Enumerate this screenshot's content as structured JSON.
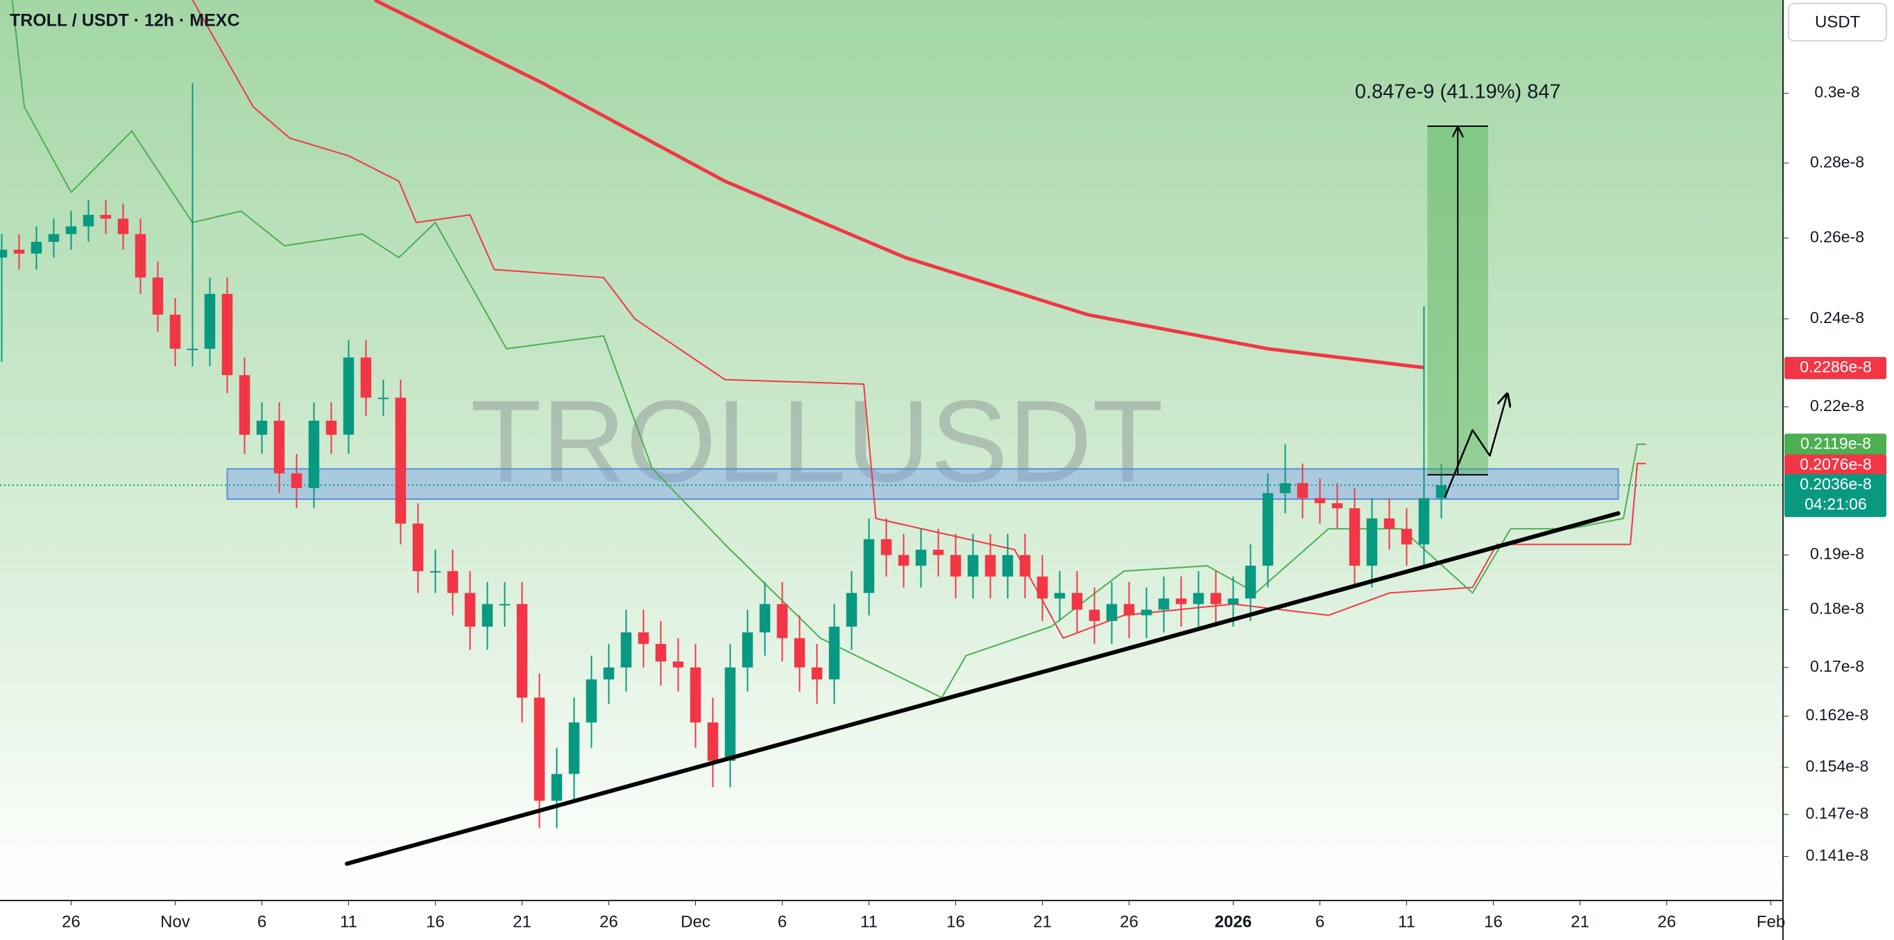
{
  "chart_data": {
    "type": "candlestick",
    "title": "TROLL / USDT · 12h · MEXC",
    "watermark": "TROLLUSDT",
    "currency": "USDT",
    "up_color": "#089981",
    "down_color": "#f23645",
    "log_scale": true,
    "xlim": [
      -4.1,
      98.7
    ],
    "ylim": [
      1.35e-09,
      3.29e-09
    ],
    "xticks": [
      {
        "value": 0,
        "label": "26"
      },
      {
        "value": 6,
        "label": "Nov"
      },
      {
        "value": 11,
        "label": "6"
      },
      {
        "value": 16,
        "label": "11"
      },
      {
        "value": 21,
        "label": "16"
      },
      {
        "value": 26,
        "label": "21"
      },
      {
        "value": 31,
        "label": "26"
      },
      {
        "value": 36,
        "label": "Dec"
      },
      {
        "value": 41,
        "label": "6"
      },
      {
        "value": 46,
        "label": "11"
      },
      {
        "value": 51,
        "label": "16"
      },
      {
        "value": 56,
        "label": "21"
      },
      {
        "value": 61,
        "label": "26"
      },
      {
        "value": 67,
        "label": "2026",
        "bold": true
      },
      {
        "value": 72,
        "label": "6"
      },
      {
        "value": 77,
        "label": "11"
      },
      {
        "value": 82,
        "label": "16"
      },
      {
        "value": 87,
        "label": "21"
      },
      {
        "value": 92,
        "label": "26"
      },
      {
        "value": 98,
        "label": "Feb"
      }
    ],
    "yticks": [
      {
        "value": 3e-09,
        "label": "0.3e-8"
      },
      {
        "value": 2.8e-09,
        "label": "0.28e-8"
      },
      {
        "value": 2.6e-09,
        "label": "0.26e-8"
      },
      {
        "value": 2.4e-09,
        "label": "0.24e-8"
      },
      {
        "value": 2.2e-09,
        "label": "0.22e-8"
      },
      {
        "value": 1.9e-09,
        "label": "0.19e-8"
      },
      {
        "value": 1.8e-09,
        "label": "0.18e-8"
      },
      {
        "value": 1.7e-09,
        "label": "0.17e-8"
      },
      {
        "value": 1.62e-09,
        "label": "0.162e-8"
      },
      {
        "value": 1.54e-09,
        "label": "0.154e-8"
      },
      {
        "value": 1.47e-09,
        "label": "0.147e-8"
      },
      {
        "value": 1.41e-09,
        "label": "0.141e-8"
      }
    ],
    "x": [
      -4,
      -3,
      -2,
      -1,
      0,
      1,
      2,
      3,
      4,
      5,
      6,
      7,
      8,
      9,
      10,
      11,
      12,
      13,
      14,
      15,
      16,
      17,
      18,
      19,
      20,
      21,
      22,
      23,
      24,
      25,
      26,
      27,
      28,
      29,
      30,
      31,
      32,
      33,
      34,
      35,
      36,
      37,
      38,
      39,
      40,
      41,
      42,
      43,
      44,
      45,
      46,
      47,
      48,
      49,
      50,
      51,
      52,
      53,
      54,
      55,
      56,
      57,
      58,
      59,
      60,
      61,
      62,
      63,
      64,
      65,
      66,
      67,
      68,
      69,
      70,
      71,
      72,
      73,
      74,
      75,
      76,
      77,
      78,
      79
    ],
    "open": [
      2.55e-09,
      2.57e-09,
      2.56e-09,
      2.59e-09,
      2.61e-09,
      2.63e-09,
      2.66e-09,
      2.65e-09,
      2.61e-09,
      2.5e-09,
      2.41e-09,
      2.33e-09,
      2.33e-09,
      2.46e-09,
      2.27e-09,
      2.14e-09,
      2.17e-09,
      2.06e-09,
      2.03e-09,
      2.17e-09,
      2.14e-09,
      2.31e-09,
      2.22e-09,
      2.22e-09,
      1.96e-09,
      1.87e-09,
      1.87e-09,
      1.83e-09,
      1.77e-09,
      1.81e-09,
      1.81e-09,
      1.65e-09,
      1.49e-09,
      1.53e-09,
      1.61e-09,
      1.68e-09,
      1.7e-09,
      1.76e-09,
      1.74e-09,
      1.71e-09,
      1.7e-09,
      1.61e-09,
      1.55e-09,
      1.7e-09,
      1.76e-09,
      1.81e-09,
      1.75e-09,
      1.7e-09,
      1.68e-09,
      1.77e-09,
      1.83e-09,
      1.93e-09,
      1.9e-09,
      1.88e-09,
      1.91e-09,
      1.9e-09,
      1.86e-09,
      1.9e-09,
      1.86e-09,
      1.9e-09,
      1.86e-09,
      1.82e-09,
      1.83e-09,
      1.8e-09,
      1.78e-09,
      1.81e-09,
      1.79e-09,
      1.8e-09,
      1.82e-09,
      1.81e-09,
      1.83e-09,
      1.81e-09,
      1.82e-09,
      1.88e-09,
      2.02e-09,
      2.04e-09,
      2.01e-09,
      2e-09,
      1.99e-09,
      1.88e-09,
      1.97e-09,
      1.95e-09,
      1.92e-09,
      2.01e-09
    ],
    "high": [
      2.61e-09,
      2.61e-09,
      2.63e-09,
      2.65e-09,
      2.67e-09,
      2.7e-09,
      2.7e-09,
      2.69e-09,
      2.65e-09,
      2.54e-09,
      2.45e-09,
      3.03e-09,
      2.5e-09,
      2.5e-09,
      2.31e-09,
      2.21e-09,
      2.21e-09,
      2.1e-09,
      2.21e-09,
      2.21e-09,
      2.35e-09,
      2.35e-09,
      2.26e-09,
      2.26e-09,
      2e-09,
      1.91e-09,
      1.91e-09,
      1.87e-09,
      1.85e-09,
      1.85e-09,
      1.85e-09,
      1.69e-09,
      1.57e-09,
      1.65e-09,
      1.72e-09,
      1.74e-09,
      1.8e-09,
      1.8e-09,
      1.78e-09,
      1.75e-09,
      1.74e-09,
      1.65e-09,
      1.74e-09,
      1.8e-09,
      1.85e-09,
      1.85e-09,
      1.79e-09,
      1.74e-09,
      1.81e-09,
      1.87e-09,
      1.97e-09,
      1.97e-09,
      1.94e-09,
      1.95e-09,
      1.95e-09,
      1.94e-09,
      1.94e-09,
      1.94e-09,
      1.94e-09,
      1.94e-09,
      1.9e-09,
      1.87e-09,
      1.87e-09,
      1.84e-09,
      1.85e-09,
      1.85e-09,
      1.84e-09,
      1.86e-09,
      1.86e-09,
      1.87e-09,
      1.87e-09,
      1.86e-09,
      1.92e-09,
      2.06e-09,
      2.12e-09,
      2.08e-09,
      2.05e-09,
      2.04e-09,
      2.03e-09,
      2.01e-09,
      2.01e-09,
      1.99e-09,
      2.43e-09,
      2.08e-09
    ],
    "low": [
      2.3e-09,
      2.52e-09,
      2.52e-09,
      2.55e-09,
      2.57e-09,
      2.59e-09,
      2.61e-09,
      2.57e-09,
      2.46e-09,
      2.37e-09,
      2.29e-09,
      2.29e-09,
      2.29e-09,
      2.23e-09,
      2.1e-09,
      2.1e-09,
      2.02e-09,
      1.99e-09,
      1.99e-09,
      2.1e-09,
      2.1e-09,
      2.18e-09,
      2.18e-09,
      1.92e-09,
      1.83e-09,
      1.83e-09,
      1.79e-09,
      1.73e-09,
      1.73e-09,
      1.77e-09,
      1.61e-09,
      1.45e-09,
      1.45e-09,
      1.49e-09,
      1.57e-09,
      1.64e-09,
      1.66e-09,
      1.7e-09,
      1.67e-09,
      1.66e-09,
      1.57e-09,
      1.51e-09,
      1.51e-09,
      1.66e-09,
      1.72e-09,
      1.71e-09,
      1.66e-09,
      1.64e-09,
      1.64e-09,
      1.73e-09,
      1.79e-09,
      1.86e-09,
      1.84e-09,
      1.84e-09,
      1.86e-09,
      1.82e-09,
      1.82e-09,
      1.82e-09,
      1.82e-09,
      1.82e-09,
      1.78e-09,
      1.78e-09,
      1.76e-09,
      1.74e-09,
      1.74e-09,
      1.75e-09,
      1.75e-09,
      1.76e-09,
      1.77e-09,
      1.77e-09,
      1.77e-09,
      1.77e-09,
      1.78e-09,
      1.84e-09,
      1.98e-09,
      1.97e-09,
      1.96e-09,
      1.95e-09,
      1.84e-09,
      1.84e-09,
      1.91e-09,
      1.88e-09,
      1.88e-09,
      1.97e-09
    ],
    "close": [
      2.57e-09,
      2.56e-09,
      2.59e-09,
      2.61e-09,
      2.63e-09,
      2.66e-09,
      2.65e-09,
      2.61e-09,
      2.5e-09,
      2.41e-09,
      2.33e-09,
      2.33e-09,
      2.46e-09,
      2.27e-09,
      2.14e-09,
      2.17e-09,
      2.06e-09,
      2.03e-09,
      2.17e-09,
      2.14e-09,
      2.31e-09,
      2.22e-09,
      2.22e-09,
      1.96e-09,
      1.87e-09,
      1.87e-09,
      1.83e-09,
      1.77e-09,
      1.81e-09,
      1.81e-09,
      1.65e-09,
      1.49e-09,
      1.53e-09,
      1.61e-09,
      1.68e-09,
      1.7e-09,
      1.76e-09,
      1.74e-09,
      1.71e-09,
      1.7e-09,
      1.61e-09,
      1.55e-09,
      1.7e-09,
      1.76e-09,
      1.81e-09,
      1.75e-09,
      1.7e-09,
      1.68e-09,
      1.77e-09,
      1.83e-09,
      1.93e-09,
      1.9e-09,
      1.88e-09,
      1.91e-09,
      1.9e-09,
      1.86e-09,
      1.9e-09,
      1.86e-09,
      1.9e-09,
      1.86e-09,
      1.82e-09,
      1.83e-09,
      1.8e-09,
      1.78e-09,
      1.81e-09,
      1.79e-09,
      1.8e-09,
      1.82e-09,
      1.81e-09,
      1.83e-09,
      1.81e-09,
      1.82e-09,
      1.88e-09,
      2.02e-09,
      2.04e-09,
      2.01e-09,
      2e-09,
      1.99e-09,
      1.88e-09,
      1.97e-09,
      1.95e-09,
      1.92e-09,
      2.01e-09,
      2.036e-09
    ],
    "ema": {
      "color": "#f23645",
      "x": [
        17.5,
        27.2,
        37.7,
        48.1,
        58.6,
        69,
        78
      ],
      "values": [
        3.29e-09,
        3.03e-09,
        2.75e-09,
        2.55e-09,
        2.41e-09,
        2.33e-09,
        2.287e-09
      ]
    },
    "cloud": {
      "span_a": {
        "color": "#f23645",
        "x": [
          7,
          10.5,
          12.6,
          16,
          18.9,
          19.9,
          23,
          24.4,
          30.7,
          32.5,
          37.7,
          45.7,
          46.4,
          54.4,
          57.2,
          60.7,
          67,
          72.5,
          76,
          80.8,
          82.2,
          89.9,
          90.3,
          90.8
        ],
        "values": [
          3.29e-09,
          2.96e-09,
          2.87e-09,
          2.82e-09,
          2.75e-09,
          2.64e-09,
          2.66e-09,
          2.52e-09,
          2.5e-09,
          2.4e-09,
          2.26e-09,
          2.25e-09,
          1.97e-09,
          1.91e-09,
          1.75e-09,
          1.79e-09,
          1.81e-09,
          1.79e-09,
          1.83e-09,
          1.84e-09,
          1.92e-09,
          1.92e-09,
          2.08e-09,
          2.08e-09
        ]
      },
      "span_b": {
        "color": "#4caf50",
        "x": [
          -3.4,
          -2.7,
          0,
          3.5,
          7,
          9.8,
          12.3,
          16.8,
          18.9,
          21,
          25.1,
          30.7,
          33.5,
          37.7,
          43.2,
          50.2,
          51.6,
          56.5,
          60.7,
          65.5,
          68.3,
          72.5,
          76.7,
          80.8,
          83,
          86.4,
          89.5,
          90.3,
          90.8
        ],
        "values": [
          3.29e-09,
          2.96e-09,
          2.72e-09,
          2.89e-09,
          2.64e-09,
          2.67e-09,
          2.58e-09,
          2.61e-09,
          2.55e-09,
          2.64e-09,
          2.33e-09,
          2.36e-09,
          2.07e-09,
          1.92e-09,
          1.75e-09,
          1.65e-09,
          1.72e-09,
          1.77e-09,
          1.87e-09,
          1.88e-09,
          1.83e-09,
          1.95e-09,
          1.95e-09,
          1.83e-09,
          1.95e-09,
          1.95e-09,
          1.97e-09,
          2.12e-09,
          2.12e-09
        ]
      }
    },
    "trendline": {
      "color": "#000000",
      "x": [
        15.9,
        89.2
      ],
      "values": [
        1.4e-09,
        1.98e-09
      ]
    },
    "zone": {
      "color": "#5b8fd9",
      "x": [
        9.0,
        89.2
      ],
      "values": [
        2.008e-09,
        2.069e-09
      ]
    },
    "measure": {
      "color": "#4caf50",
      "x": [
        78.2,
        81.7
      ],
      "values": [
        2.057e-09,
        2.904e-09
      ],
      "label": "0.847e-9 (41.19%) 847"
    },
    "projection": {
      "color": "#000000",
      "x": [
        79.2,
        80.8,
        81.8,
        82.8
      ],
      "values": [
        2.011e-09,
        2.15e-09,
        2.096e-09,
        2.228e-09
      ]
    },
    "price_labels": [
      {
        "value": 2.286e-09,
        "label": "0.2286e-8",
        "color": "#f23645"
      },
      {
        "value": 2.119e-09,
        "label": "0.2119e-8",
        "color": "#4caf50"
      },
      {
        "value": 2.076e-09,
        "label": "0.2076e-8",
        "color": "#f23645"
      },
      {
        "value": 2.036e-09,
        "label": "0.2036e-8",
        "color": "#089981",
        "countdown": "04:21:06"
      }
    ]
  }
}
